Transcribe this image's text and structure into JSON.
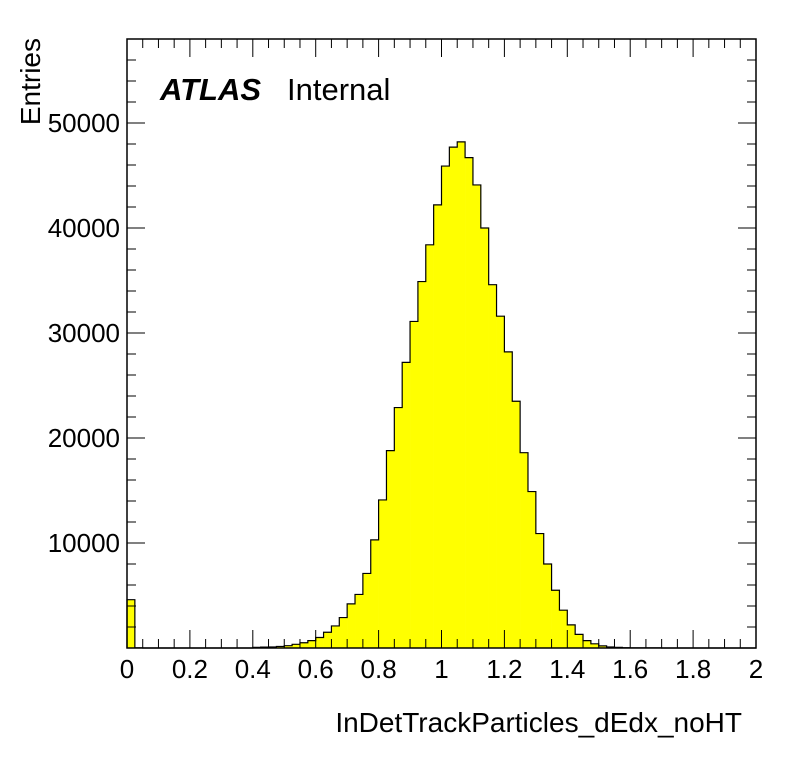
{
  "chart_data": {
    "type": "bar",
    "title": "",
    "xlabel": "InDetTrackParticles_dEdx_noHT",
    "ylabel": "Entries",
    "experiment_label": "ATLAS",
    "status_label": "Internal",
    "xlim": [
      0,
      2
    ],
    "ylim": [
      0,
      58000
    ],
    "grid": false,
    "fill_color": "#ffff00",
    "line_color": "#000000",
    "x_ticks": [
      "0",
      "0.2",
      "0.4",
      "0.6",
      "0.8",
      "1",
      "1.2",
      "1.4",
      "1.6",
      "1.8",
      "2"
    ],
    "y_ticks": [
      "10000",
      "20000",
      "30000",
      "40000",
      "50000"
    ],
    "bin_width": 0.025,
    "x": [
      0.0125,
      0.0375,
      0.0625,
      0.0875,
      0.1125,
      0.1375,
      0.1625,
      0.1875,
      0.2125,
      0.2375,
      0.2625,
      0.2875,
      0.3125,
      0.3375,
      0.3625,
      0.3875,
      0.4125,
      0.4375,
      0.4625,
      0.4875,
      0.5125,
      0.5375,
      0.5625,
      0.5875,
      0.6125,
      0.6375,
      0.6625,
      0.6875,
      0.7125,
      0.7375,
      0.7625,
      0.7875,
      0.8125,
      0.8375,
      0.8625,
      0.8875,
      0.9125,
      0.9375,
      0.9625,
      0.9875,
      1.0125,
      1.0375,
      1.0625,
      1.0875,
      1.1125,
      1.1375,
      1.1625,
      1.1875,
      1.2125,
      1.2375,
      1.2625,
      1.2875,
      1.3125,
      1.3375,
      1.3625,
      1.3875,
      1.4125,
      1.4375,
      1.4625,
      1.4875,
      1.5125,
      1.5375,
      1.5625,
      1.5875,
      1.6125,
      1.6375,
      1.6625,
      1.6875,
      1.7125,
      1.7375,
      1.7625,
      1.7875,
      1.8125,
      1.8375,
      1.8625,
      1.8875,
      1.9125,
      1.9375,
      1.9625,
      1.9875
    ],
    "values": [
      4600,
      20,
      0,
      0,
      0,
      0,
      0,
      0,
      0,
      0,
      0,
      0,
      0,
      0,
      0,
      0,
      60,
      80,
      100,
      150,
      220,
      350,
      500,
      700,
      1000,
      1500,
      2100,
      2900,
      4200,
      5100,
      7100,
      10300,
      14100,
      18800,
      22900,
      27200,
      31100,
      34900,
      38400,
      42200,
      45900,
      47700,
      48200,
      46700,
      44100,
      40000,
      34600,
      31600,
      28200,
      23500,
      18600,
      14900,
      10900,
      8000,
      5500,
      3600,
      2200,
      1300,
      700,
      400,
      200,
      100,
      60,
      30,
      20,
      10,
      10,
      10,
      0,
      0,
      0,
      0,
      0,
      0,
      0,
      0,
      0,
      0,
      0,
      0
    ]
  }
}
